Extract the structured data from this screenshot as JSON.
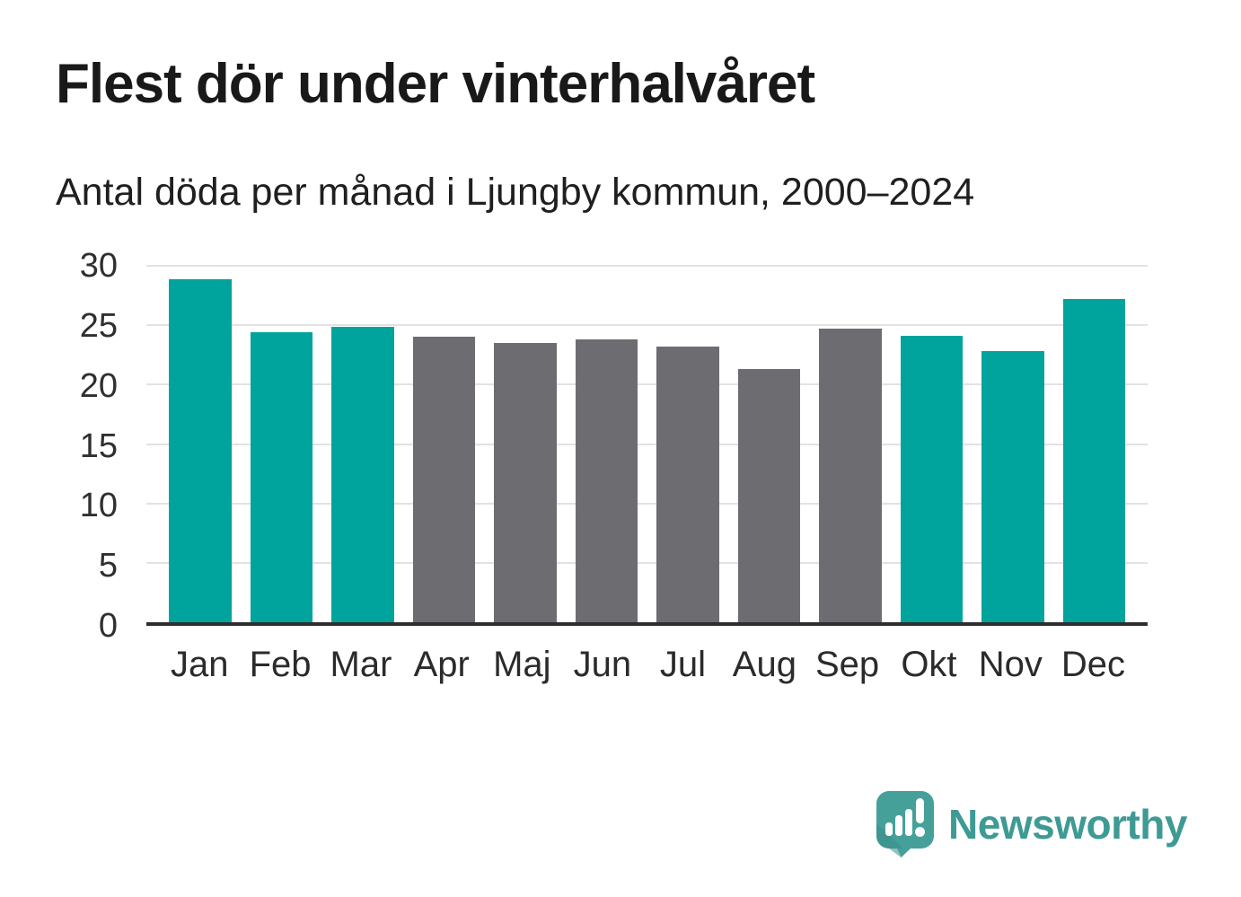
{
  "chart_data": {
    "type": "bar",
    "title": "Flest dör under vinterhalvåret",
    "subtitle": "Antal döda per månad i Ljungby kommun, 2000–2024",
    "categories": [
      "Jan",
      "Feb",
      "Mar",
      "Apr",
      "Maj",
      "Jun",
      "Jul",
      "Aug",
      "Sep",
      "Okt",
      "Nov",
      "Dec"
    ],
    "values": [
      28.9,
      24.4,
      24.9,
      24.0,
      23.5,
      23.8,
      23.2,
      21.3,
      24.7,
      24.1,
      22.8,
      27.2
    ],
    "bar_colors": [
      "#00a49c",
      "#00a49c",
      "#00a49c",
      "#6c6c71",
      "#6c6c71",
      "#6c6c71",
      "#6c6c71",
      "#6c6c71",
      "#6c6c71",
      "#00a49c",
      "#00a49c",
      "#00a49c"
    ],
    "palette": {
      "winter_months": "#00a49c",
      "summer_months": "#6c6c71"
    },
    "xlabel": "",
    "ylabel": "",
    "ylim": [
      0,
      30
    ],
    "yticks": [
      0,
      5,
      10,
      15,
      20,
      25,
      30
    ],
    "grid": "horizontal",
    "legend": "none"
  },
  "footer": {
    "brand": "Newsworthy",
    "logo_icon": "newsworthy-speech-bubble-barchart-icon",
    "brand_color": "#3e9a94",
    "logo_fill": "#46a09a"
  }
}
